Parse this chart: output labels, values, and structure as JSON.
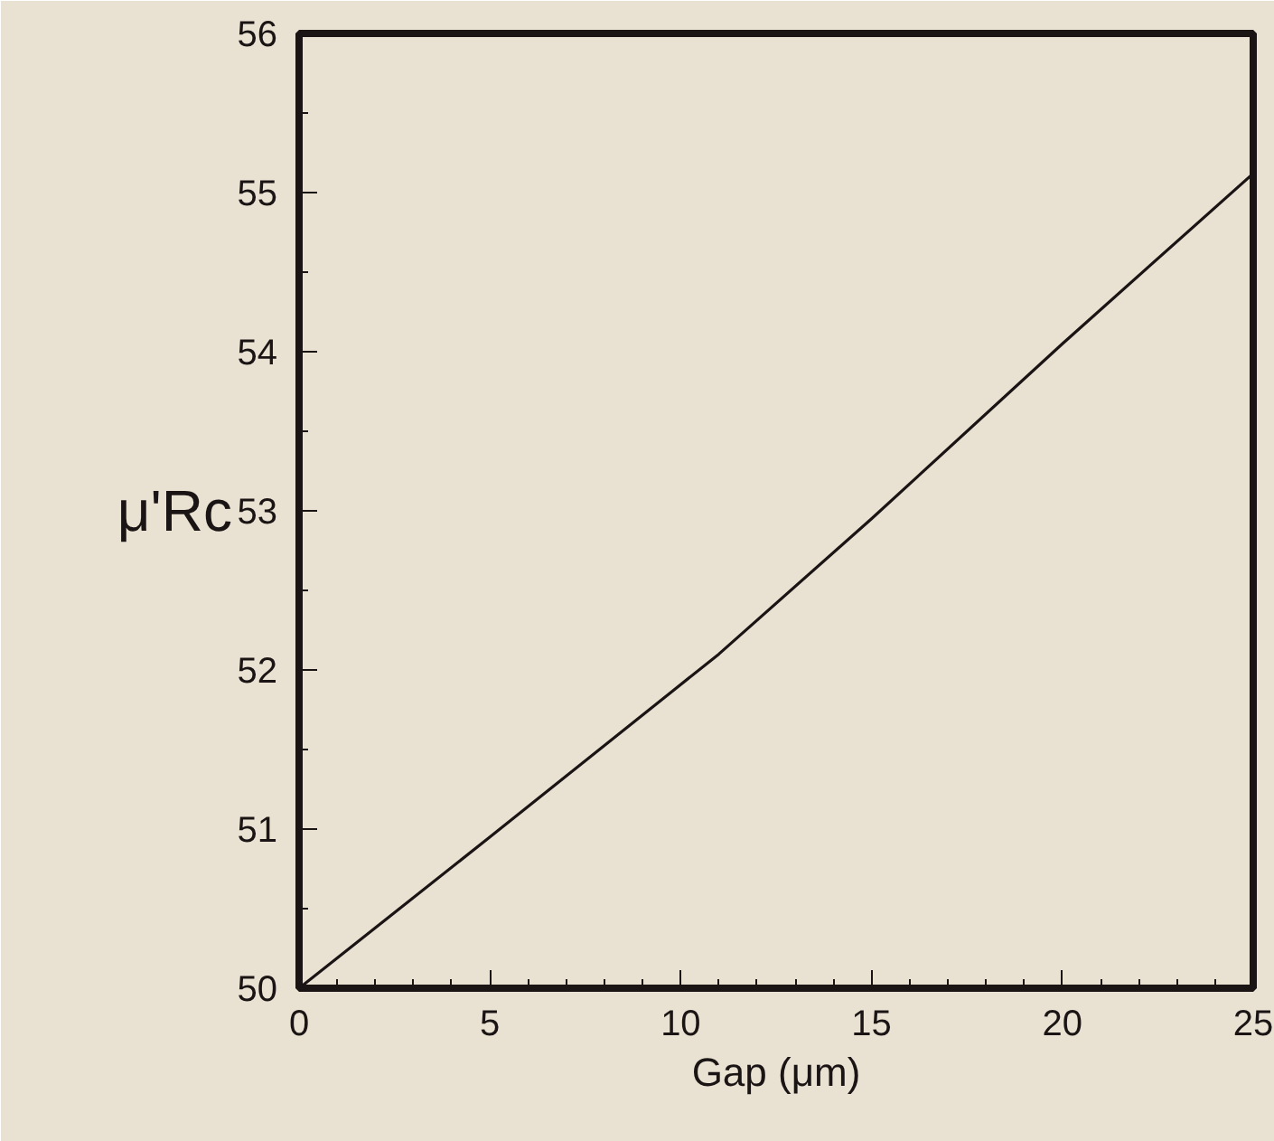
{
  "chart_data": {
    "type": "line",
    "xlabel": "Gap (μm)",
    "ylabel": "μ'Rc",
    "x": [
      0,
      5,
      11,
      15,
      20,
      25
    ],
    "series": [
      {
        "color": "#1a1414",
        "values": [
          50,
          50.95,
          52.1,
          52.95,
          54.05,
          55.12
        ]
      }
    ],
    "xlim": [
      0,
      25
    ],
    "xticks": [
      0,
      5,
      10,
      15,
      20,
      25
    ],
    "ylim": [
      50,
      56
    ],
    "yticks": [
      50,
      51,
      52,
      53,
      54,
      55,
      56
    ],
    "grid": false,
    "marker": "none",
    "line_style": "solid"
  }
}
